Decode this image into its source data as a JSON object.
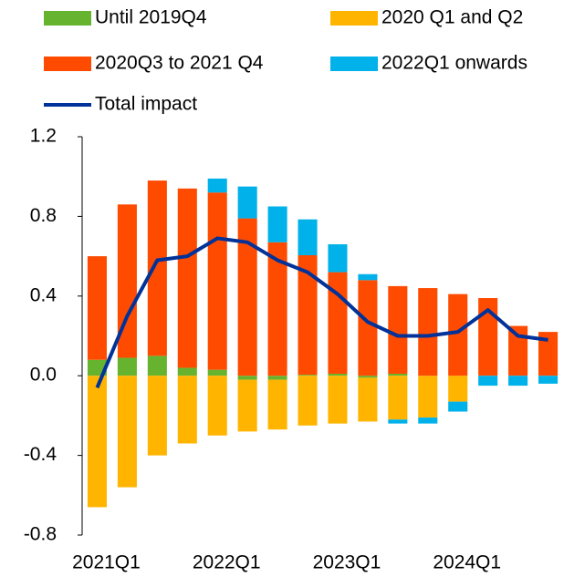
{
  "chart_data": {
    "type": "bar",
    "categories": [
      "2021Q1",
      null,
      null,
      null,
      "2022Q1",
      null,
      null,
      null,
      "2023Q1",
      null,
      null,
      null,
      "2024Q1",
      null,
      null,
      null
    ],
    "series": [
      {
        "name": "Until 2019Q4",
        "color": "#65b32e",
        "values": [
          0.08,
          0.09,
          0.1,
          0.04,
          0.03,
          -0.02,
          -0.02,
          0.005,
          0.01,
          -0.01,
          0.01,
          0,
          0,
          0,
          0,
          0
        ]
      },
      {
        "name": "2020 Q1 and Q2",
        "color": "#ffb400",
        "values": [
          -0.66,
          -0.56,
          -0.4,
          -0.34,
          -0.3,
          -0.26,
          -0.25,
          -0.25,
          -0.24,
          -0.22,
          -0.22,
          -0.21,
          -0.13,
          0,
          0,
          0
        ]
      },
      {
        "name": "2020Q3 to 2021 Q4",
        "color": "#ff4b00",
        "values": [
          0.52,
          0.77,
          0.88,
          0.9,
          0.89,
          0.79,
          0.67,
          0.6,
          0.51,
          0.48,
          0.44,
          0.44,
          0.41,
          0.39,
          0.25,
          0.22
        ]
      },
      {
        "name": "2022Q1 onwards",
        "color": "#00b1ea",
        "values": [
          0,
          0,
          0,
          0,
          0.07,
          0.16,
          0.18,
          0.18,
          0.14,
          0.03,
          -0.02,
          -0.03,
          -0.05,
          -0.05,
          -0.05,
          -0.04
        ]
      },
      {
        "name": "Total impact",
        "color": "#003299",
        "type": "line",
        "values": [
          -0.06,
          0.3,
          0.58,
          0.6,
          0.69,
          0.67,
          0.58,
          0.52,
          0.41,
          0.27,
          0.2,
          0.2,
          0.22,
          0.33,
          0.2,
          0.18
        ]
      }
    ],
    "stacked": true,
    "ylim": [
      -0.8,
      1.2
    ],
    "yticks": [
      {
        "value": -0.8,
        "label": "-0.8"
      },
      {
        "value": -0.4,
        "label": "-0.4"
      },
      {
        "value": 0,
        "label": "0.0"
      },
      {
        "value": 0.4,
        "label": "0.4"
      },
      {
        "value": 0.8,
        "label": "0.8"
      },
      {
        "value": 1.2,
        "label": "1.2"
      }
    ],
    "grid": false,
    "legend": "top"
  }
}
